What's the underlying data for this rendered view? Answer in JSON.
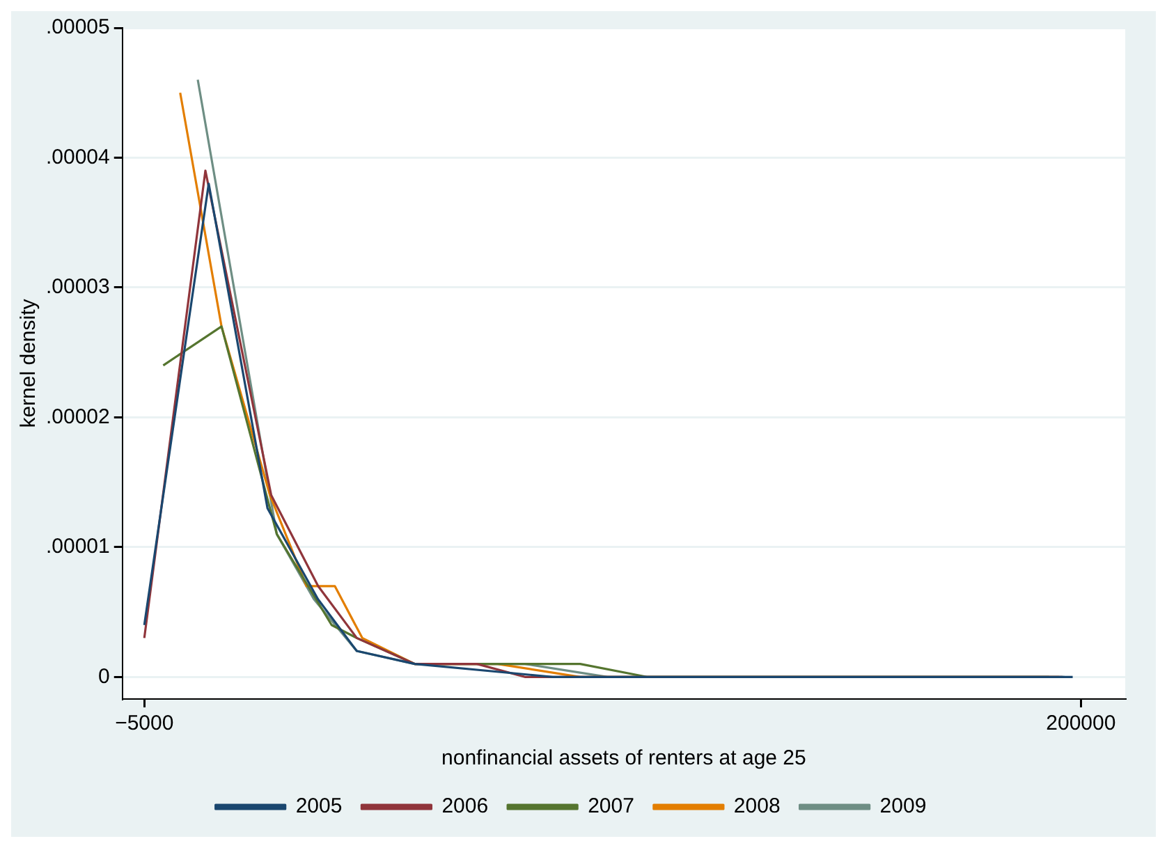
{
  "chart_data": {
    "type": "line",
    "xlabel": "nonfinancial assets of renters at age 25",
    "ylabel": "kernel density",
    "xlim": [
      -9800,
      209700
    ],
    "xticks": [
      -5000,
      200000
    ],
    "ylim": [
      -1.7e-06,
      5e-05
    ],
    "yticks": [
      0,
      {
        "value": 1e-05,
        "label": ".00001"
      },
      {
        "value": 2e-05,
        "label": ".00002"
      },
      {
        "value": 3e-05,
        "label": ".00003"
      },
      {
        "value": 4e-05,
        "label": ".00004"
      },
      {
        "value": 5e-05,
        "label": ".00005"
      }
    ],
    "grid": "y",
    "legend": "bottom",
    "marker": "none",
    "line_style": "solid",
    "series": [
      {
        "name": "2005",
        "color": "#1a476f",
        "x": [
          -5000,
          9100,
          21960,
          33000,
          41500,
          54200,
          84400,
          114500,
          156800,
          198200
        ],
        "values": [
          4e-06,
          3.8e-05,
          1.3e-05,
          6e-06,
          2e-06,
          1e-06,
          0,
          0,
          0,
          0
        ]
      },
      {
        "name": "2006",
        "color": "#90353b",
        "x": [
          -5000,
          8370,
          22780,
          33040,
          41500,
          54200,
          67800,
          78300,
          120000,
          196000
        ],
        "values": [
          3e-06,
          3.9e-05,
          1.4e-05,
          7e-06,
          3e-06,
          1e-06,
          1e-06,
          0,
          0,
          0
        ]
      },
      {
        "name": "2007",
        "color": "#55752f",
        "x": [
          -860,
          11900,
          24000,
          36000,
          41500,
          54200,
          69300,
          90400,
          105000,
          193000
        ],
        "values": [
          2.4e-05,
          2.7e-05,
          1.1e-05,
          4e-06,
          3e-06,
          1e-06,
          1e-06,
          1e-06,
          0,
          0
        ]
      },
      {
        "name": "2008",
        "color": "#e37e00",
        "x": [
          2850,
          11900,
          22500,
          30500,
          36700,
          42700,
          54200,
          72300,
          90400,
          178000,
          195200
        ],
        "values": [
          4.5e-05,
          2.7e-05,
          1.4e-05,
          7e-06,
          7e-06,
          3e-06,
          1e-06,
          1e-06,
          0,
          0,
          0
        ]
      },
      {
        "name": "2009",
        "color": "#6e8e84",
        "x": [
          6700,
          24000,
          32100,
          41500,
          54200,
          78300,
          96400,
          196400
        ],
        "values": [
          4.6e-05,
          1.1e-05,
          6e-06,
          2e-06,
          1e-06,
          1e-06,
          0,
          0
        ]
      }
    ]
  }
}
